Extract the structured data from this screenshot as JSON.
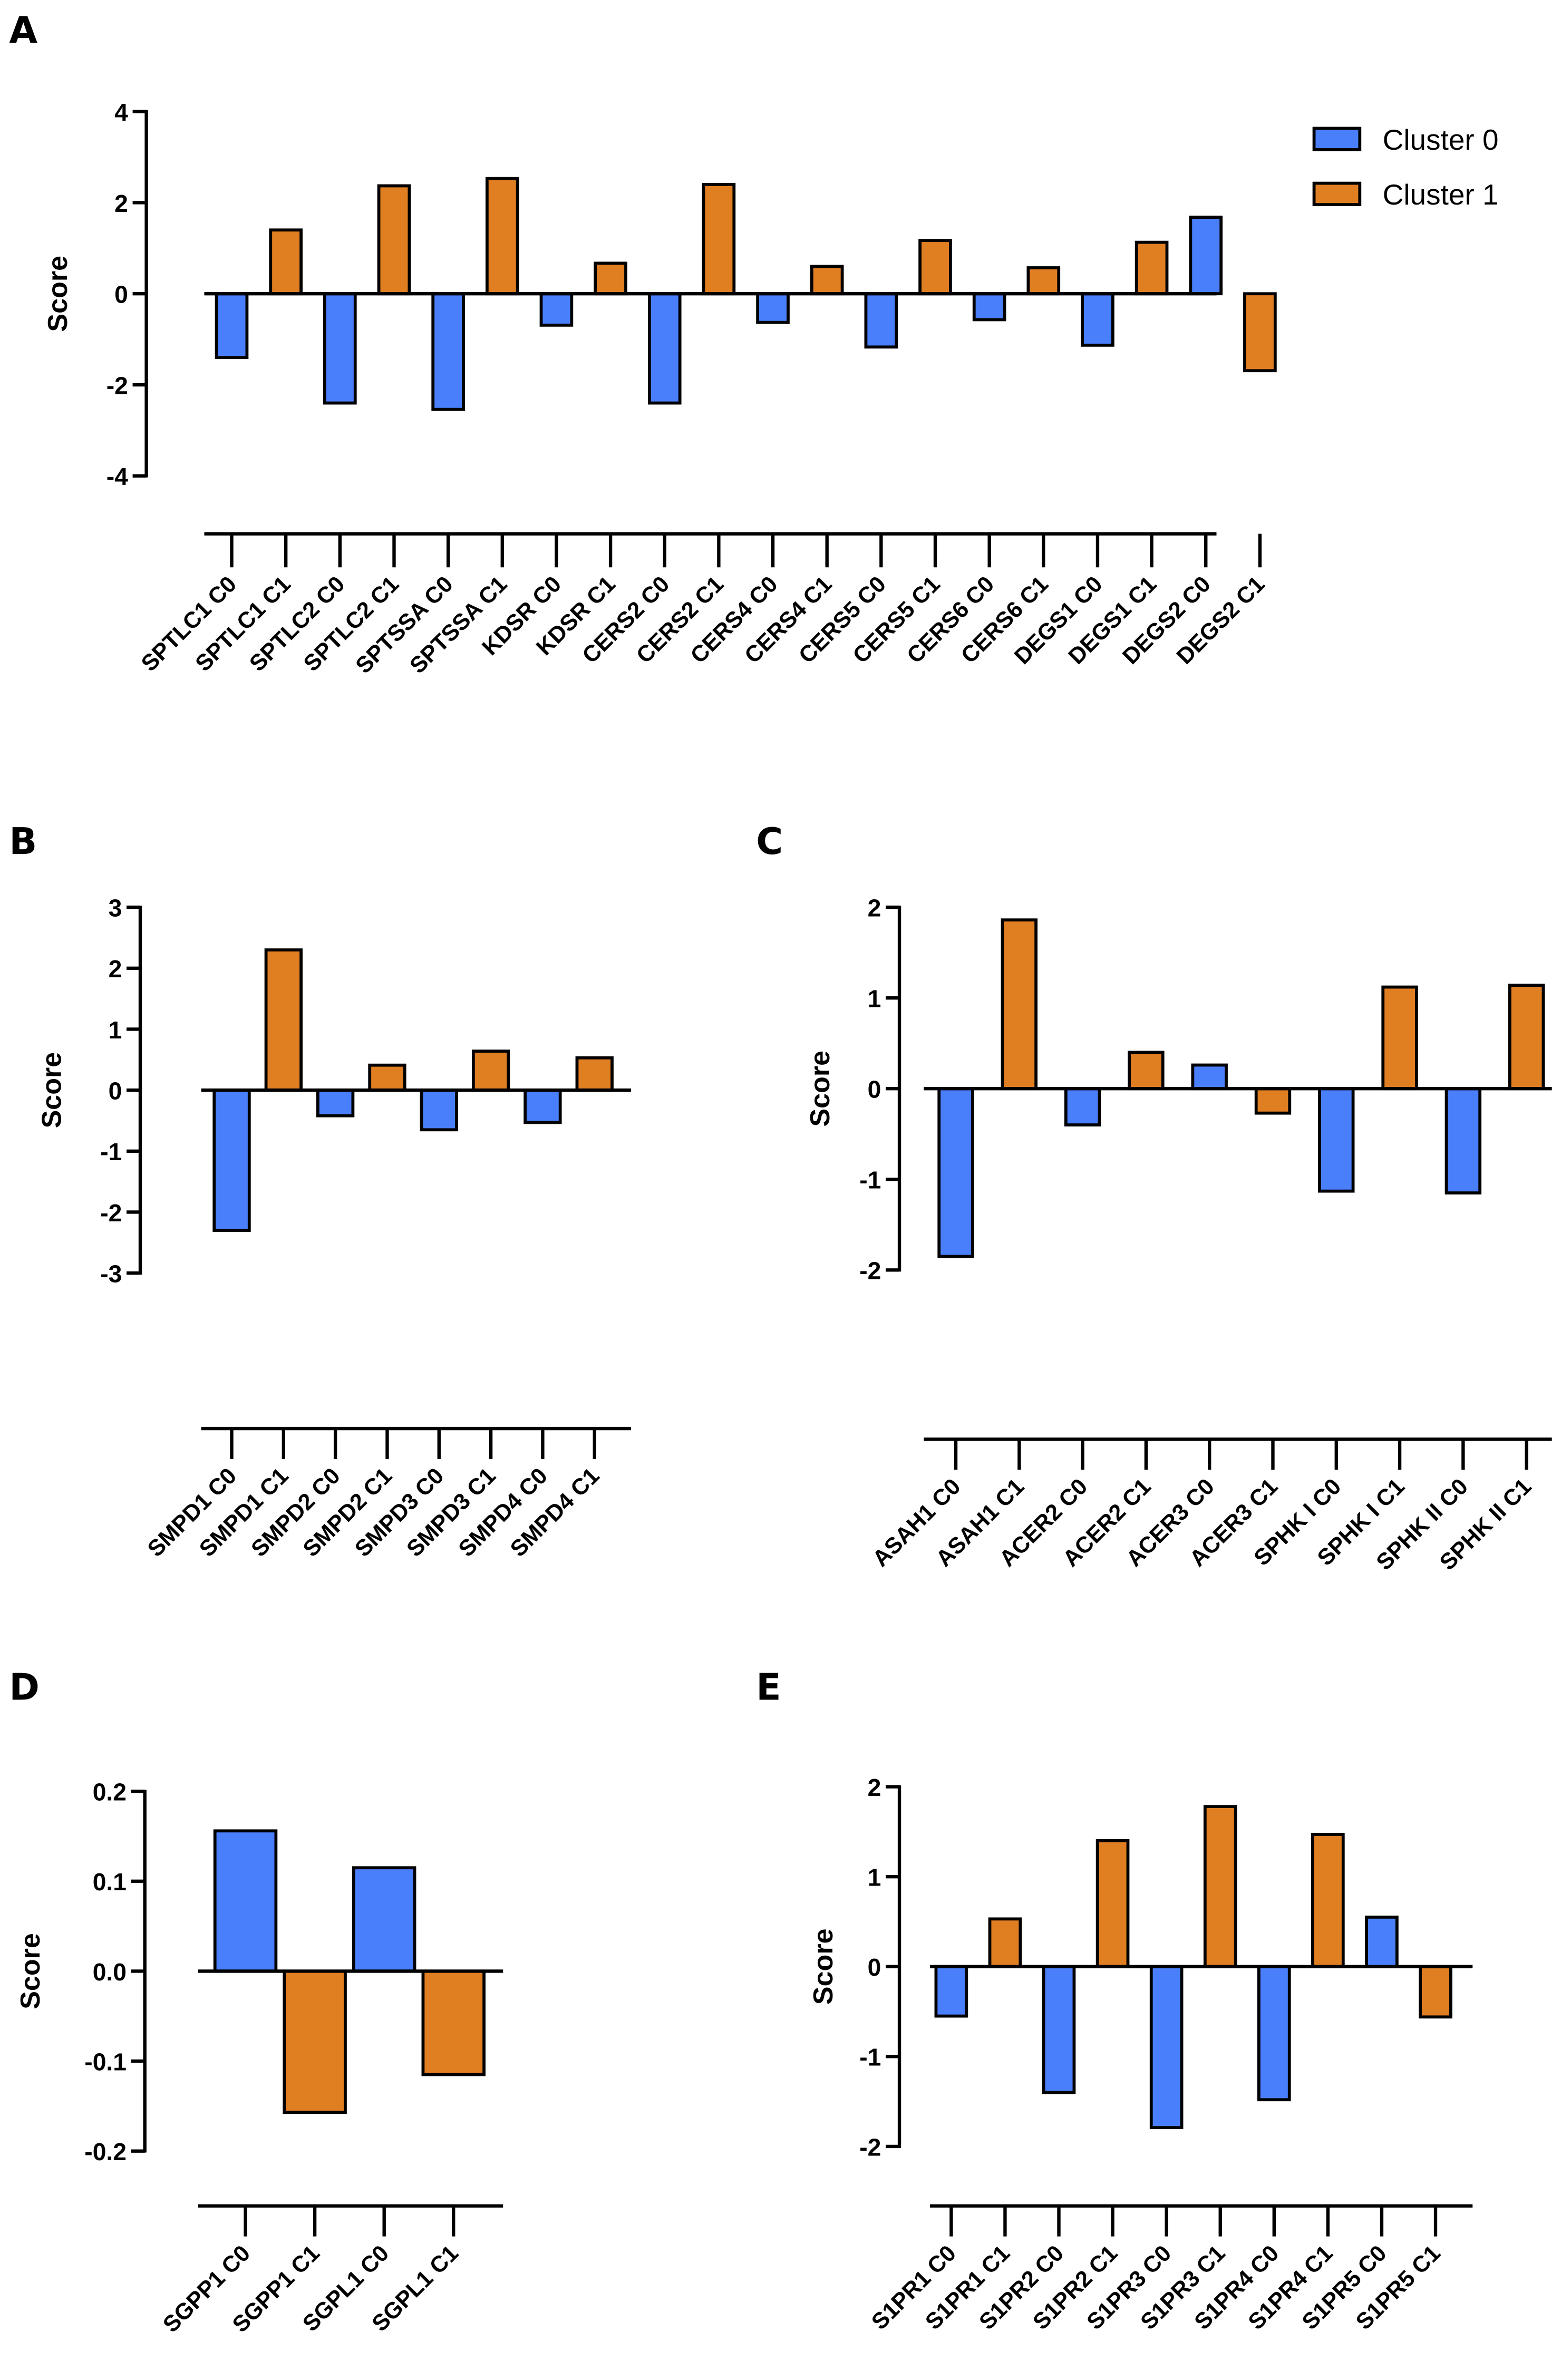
{
  "figure": {
    "legend": [
      {
        "label": "Cluster 0",
        "color": "#4a7ffc"
      },
      {
        "label": "Cluster 1",
        "color": "#e07e22"
      }
    ]
  },
  "chart_data": [
    {
      "panel": "A",
      "type": "bar",
      "ylabel": "Score",
      "xlabel": "",
      "ylim": [
        -4,
        4
      ],
      "yticks": [
        4,
        2,
        0,
        -2,
        -4
      ],
      "ytick_labels": [
        "4",
        "2",
        "0",
        "-2",
        "-4"
      ],
      "legend": "top-right",
      "categories": [
        "SPTLC1 C0",
        "SPTLC1 C1",
        "SPTLC2 C0",
        "SPTLC2 C1",
        "SPTSSA C0",
        "SPTSSA C1",
        "KDSR C0",
        "KDSR C1",
        "CERS2 C0",
        "CERS2 C1",
        "CERS4 C0",
        "CERS4 C1",
        "CERS5 C0",
        "CERS5 C1",
        "CERS6 C0",
        "CERS6 C1",
        "DEGS1 C0",
        "DEGS1 C1",
        "DEGS2 C0",
        "DEGS2 C1"
      ],
      "values": [
        -1.4,
        1.4,
        -2.4,
        2.37,
        -2.54,
        2.53,
        -0.69,
        0.67,
        -2.4,
        2.4,
        -0.63,
        0.6,
        -1.17,
        1.17,
        -0.57,
        0.57,
        -1.13,
        1.13,
        1.68,
        -1.69
      ],
      "clusters": [
        0,
        1,
        0,
        1,
        0,
        1,
        0,
        1,
        0,
        1,
        0,
        1,
        0,
        1,
        0,
        1,
        0,
        1,
        0,
        1
      ]
    },
    {
      "panel": "B",
      "type": "bar",
      "ylabel": "Score",
      "xlabel": "",
      "ylim": [
        -3,
        3
      ],
      "yticks": [
        3,
        2,
        1,
        0,
        -1,
        -2,
        -3
      ],
      "ytick_labels": [
        "3",
        "2",
        "1",
        "0",
        "-1",
        "-2",
        "-3"
      ],
      "categories": [
        "SMPD1 C0",
        "SMPD1 C1",
        "SMPD2 C0",
        "SMPD2 C1",
        "SMPD3 C0",
        "SMPD3 C1",
        "SMPD4 C0",
        "SMPD4 C1"
      ],
      "values": [
        -2.3,
        2.3,
        -0.42,
        0.41,
        -0.65,
        0.64,
        -0.53,
        0.53
      ],
      "clusters": [
        0,
        1,
        0,
        1,
        0,
        1,
        0,
        1
      ]
    },
    {
      "panel": "C",
      "type": "bar",
      "ylabel": "Score",
      "xlabel": "",
      "ylim": [
        -2,
        2
      ],
      "yticks": [
        2,
        1,
        0,
        -1,
        -2
      ],
      "ytick_labels": [
        "2",
        "1",
        "0",
        "-1",
        "-2"
      ],
      "categories": [
        "ASAH1 C0",
        "ASAH1 C1",
        "ACER2 C0",
        "ACER2 C1",
        "ACER3 C0",
        "ACER3 C1",
        "SPHK I C0",
        "SPHK I C1",
        "SPHK II C0",
        "SPHK II C1"
      ],
      "values": [
        -1.85,
        1.86,
        -0.4,
        0.4,
        0.26,
        -0.27,
        -1.13,
        1.12,
        -1.15,
        1.14
      ],
      "clusters": [
        0,
        1,
        0,
        1,
        0,
        1,
        0,
        1,
        0,
        1
      ]
    },
    {
      "panel": "D",
      "type": "bar",
      "ylabel": "Score",
      "xlabel": "",
      "ylim": [
        -0.2,
        0.2
      ],
      "yticks": [
        0.2,
        0.1,
        0.0,
        -0.1,
        -0.2
      ],
      "ytick_labels": [
        "0.2",
        "0.1",
        "0.0",
        "-0.1",
        "-0.2"
      ],
      "categories": [
        "SGPP1 C0",
        "SGPP1 C1",
        "SGPL1 C0",
        "SGPL1 C1"
      ],
      "values": [
        0.156,
        -0.157,
        0.115,
        -0.115
      ],
      "clusters": [
        0,
        1,
        0,
        1
      ]
    },
    {
      "panel": "E",
      "type": "bar",
      "ylabel": "Score",
      "xlabel": "",
      "ylim": [
        -2,
        2
      ],
      "yticks": [
        2,
        1,
        0,
        -1,
        -2
      ],
      "ytick_labels": [
        "2",
        "1",
        "0",
        "-1",
        "-2"
      ],
      "categories": [
        "S1PR1 C0",
        "S1PR1 C1",
        "S1PR2 C0",
        "S1PR2 C1",
        "S1PR3 C0",
        "S1PR3 C1",
        "S1PR4 C0",
        "S1PR4 C1",
        "S1PR5 C0",
        "S1PR5 C1"
      ],
      "values": [
        -0.55,
        0.53,
        -1.4,
        1.4,
        -1.79,
        1.78,
        -1.48,
        1.47,
        0.55,
        -0.56
      ],
      "clusters": [
        0,
        1,
        0,
        1,
        0,
        1,
        0,
        1,
        0,
        1
      ]
    }
  ]
}
